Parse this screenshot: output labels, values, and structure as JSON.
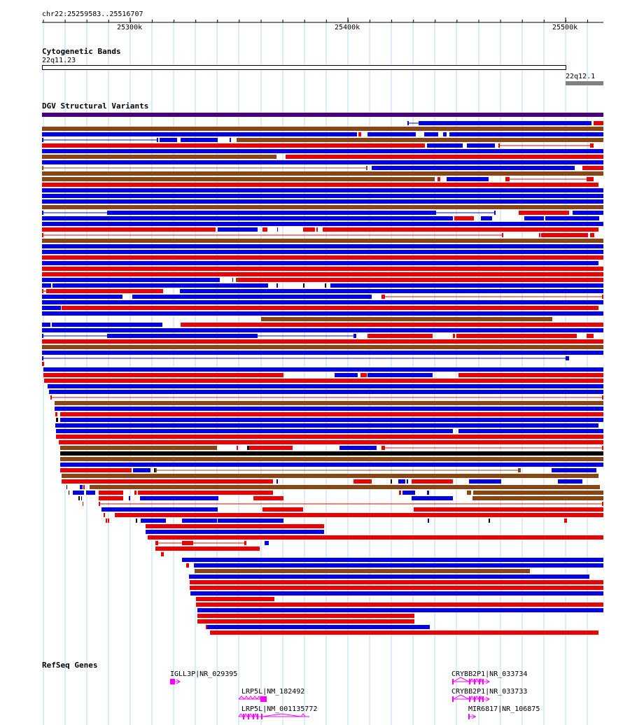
{
  "locus": "chr22:25259583..25516707",
  "ruler_ticks": [
    {
      "label": "25300k",
      "pos": 25300000
    },
    {
      "label": "25400k",
      "pos": 25400000
    },
    {
      "label": "25500k",
      "pos": 25500000
    }
  ],
  "tracks": {
    "cytoband": {
      "title": "Cytogenetic Bands",
      "bands": [
        {
          "name": "22q11.23",
          "start": 25259583,
          "end": 25500000,
          "color": "#ffffff"
        },
        {
          "name": "22q12.1",
          "start": 25500000,
          "end": 25516707,
          "color": "#808080"
        }
      ]
    },
    "dgv": {
      "title": "DGV Structural Variants",
      "colors": {
        "gain": "#0000ee",
        "loss": "#ee0000",
        "gain_loss": "#8b4513",
        "inversion": "#4b0082",
        "other": "#000000"
      }
    },
    "refseq": {
      "title": "RefSeq Genes",
      "genes": [
        {
          "label": "IGLL3P|NR_029395",
          "color": "#ff00ff"
        },
        {
          "label": "LRP5L|NM_182492",
          "color": "#ff00ff"
        },
        {
          "label": "LRP5L|NM_001135772",
          "color": "#ff00ff"
        },
        {
          "label": "CRYBB2P1|NR_033734",
          "color": "#ff00ff"
        },
        {
          "label": "CRYBB2P1|NR_033733",
          "color": "#ff00ff"
        },
        {
          "label": "MIR6817|NR_106875",
          "color": "#ff00ff"
        }
      ]
    }
  }
}
